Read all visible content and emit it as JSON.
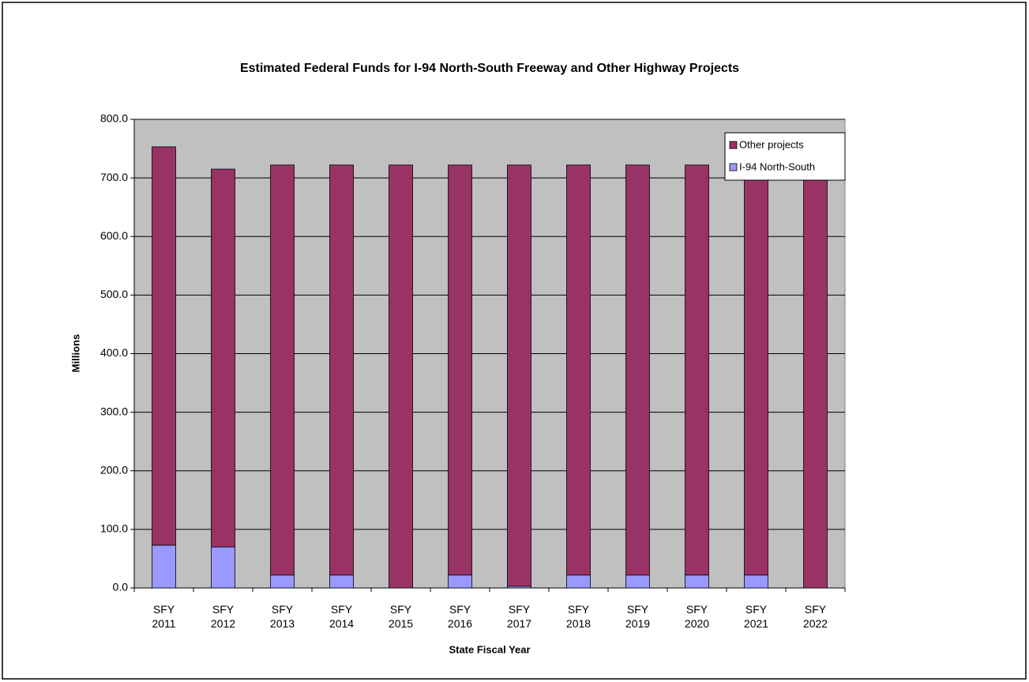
{
  "chart_data": {
    "type": "stacked_bar",
    "title": "Estimated Federal Funds for I-94 North-South Freeway and Other Highway Projects",
    "x_label": "State Fiscal Year",
    "y_label": "Millions",
    "categories": [
      "SFY 2011",
      "SFY 2012",
      "SFY 2013",
      "SFY 2014",
      "SFY 2015",
      "SFY 2016",
      "SFY 2017",
      "SFY 2018",
      "SFY 2019",
      "SFY 2020",
      "SFY 2021",
      "SFY 2022"
    ],
    "series": [
      {
        "name": "I-94 North-South",
        "color": "#9999ff",
        "values": [
          73,
          70,
          22,
          22,
          0,
          22,
          3,
          22,
          22,
          22,
          22,
          0
        ]
      },
      {
        "name": "Other projects",
        "color": "#993366",
        "values": [
          680,
          645,
          700,
          700,
          722,
          700,
          719,
          700,
          700,
          700,
          700,
          722
        ]
      }
    ],
    "ylim": [
      0,
      800
    ],
    "yticks": [
      {
        "value": 0,
        "label": "0.0"
      },
      {
        "value": 100,
        "label": "100.0"
      },
      {
        "value": 200,
        "label": "200.0"
      },
      {
        "value": 300,
        "label": "300.0"
      },
      {
        "value": 400,
        "label": "400.0"
      },
      {
        "value": 500,
        "label": "500.0"
      },
      {
        "value": 600,
        "label": "600.0"
      },
      {
        "value": 700,
        "label": "700.0"
      },
      {
        "value": 800,
        "label": "800.0"
      }
    ],
    "grid": true,
    "legend": "upper right"
  }
}
